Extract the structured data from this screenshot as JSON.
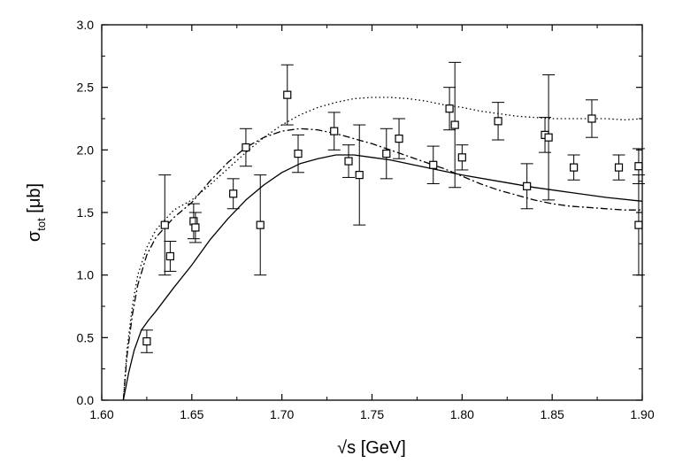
{
  "chart_data": {
    "type": "scatter",
    "xlabel": "√s [GeV]",
    "ylabel": {
      "base": "σ",
      "sub": "tot",
      "unit": " [μb]"
    },
    "xlim": [
      1.6,
      1.9
    ],
    "ylim": [
      0.0,
      3.0
    ],
    "x_ticks": [
      "1.60",
      "1.65",
      "1.70",
      "1.75",
      "1.80",
      "1.85",
      "1.90"
    ],
    "y_ticks": [
      "0.0",
      "0.5",
      "1.0",
      "1.5",
      "2.0",
      "2.5",
      "3.0"
    ],
    "grid": false,
    "legend": "none",
    "points": [
      {
        "x": 1.625,
        "y": 0.47,
        "err": 0.09
      },
      {
        "x": 1.635,
        "y": 1.4,
        "err": 0.4
      },
      {
        "x": 1.638,
        "y": 1.15,
        "err": 0.12
      },
      {
        "x": 1.651,
        "y": 1.43,
        "err": 0.14
      },
      {
        "x": 1.652,
        "y": 1.38,
        "err": 0.12
      },
      {
        "x": 1.673,
        "y": 1.65,
        "err": 0.12
      },
      {
        "x": 1.68,
        "y": 2.02,
        "err": 0.15
      },
      {
        "x": 1.688,
        "y": 1.4,
        "err": 0.4
      },
      {
        "x": 1.703,
        "y": 2.44,
        "err": 0.24
      },
      {
        "x": 1.709,
        "y": 1.97,
        "err": 0.15
      },
      {
        "x": 1.729,
        "y": 2.15,
        "err": 0.15
      },
      {
        "x": 1.737,
        "y": 1.91,
        "err": 0.13
      },
      {
        "x": 1.743,
        "y": 1.8,
        "err": 0.4
      },
      {
        "x": 1.758,
        "y": 1.97,
        "err": 0.2
      },
      {
        "x": 1.765,
        "y": 2.09,
        "err": 0.16
      },
      {
        "x": 1.784,
        "y": 1.88,
        "err": 0.15
      },
      {
        "x": 1.793,
        "y": 2.33,
        "err": 0.17
      },
      {
        "x": 1.796,
        "y": 2.2,
        "err": 0.5
      },
      {
        "x": 1.8,
        "y": 1.94,
        "err": 0.1
      },
      {
        "x": 1.82,
        "y": 2.23,
        "err": 0.15
      },
      {
        "x": 1.836,
        "y": 1.71,
        "err": 0.18
      },
      {
        "x": 1.846,
        "y": 2.12,
        "err": 0.14
      },
      {
        "x": 1.848,
        "y": 2.1,
        "err": 0.5
      },
      {
        "x": 1.862,
        "y": 1.86,
        "err": 0.1
      },
      {
        "x": 1.872,
        "y": 2.25,
        "err": 0.15
      },
      {
        "x": 1.887,
        "y": 1.86,
        "err": 0.1
      },
      {
        "x": 1.898,
        "y": 1.87,
        "err": 0.14
      },
      {
        "x": 1.898,
        "y": 1.4,
        "err": 0.4
      }
    ],
    "curves": [
      {
        "style": "solid",
        "x": [
          1.612,
          1.615,
          1.618,
          1.622,
          1.626,
          1.63,
          1.64,
          1.65,
          1.66,
          1.67,
          1.68,
          1.69,
          1.7,
          1.71,
          1.72,
          1.73,
          1.74,
          1.75,
          1.76,
          1.77,
          1.78,
          1.79,
          1.8,
          1.82,
          1.84,
          1.86,
          1.88,
          1.9
        ],
        "y": [
          0.0,
          0.22,
          0.4,
          0.56,
          0.64,
          0.71,
          0.9,
          1.08,
          1.28,
          1.45,
          1.6,
          1.72,
          1.82,
          1.89,
          1.93,
          1.96,
          1.96,
          1.94,
          1.92,
          1.89,
          1.86,
          1.83,
          1.8,
          1.75,
          1.7,
          1.66,
          1.62,
          1.59
        ]
      },
      {
        "style": "dotted",
        "x": [
          1.612,
          1.614,
          1.617,
          1.62,
          1.625,
          1.63,
          1.64,
          1.65,
          1.66,
          1.67,
          1.68,
          1.69,
          1.7,
          1.71,
          1.72,
          1.73,
          1.74,
          1.75,
          1.76,
          1.77,
          1.78,
          1.79,
          1.8,
          1.81,
          1.82,
          1.83,
          1.84,
          1.85,
          1.86,
          1.87,
          1.88,
          1.89,
          1.9
        ],
        "y": [
          0.0,
          0.4,
          0.75,
          1.0,
          1.22,
          1.36,
          1.52,
          1.6,
          1.72,
          1.85,
          1.98,
          2.1,
          2.2,
          2.28,
          2.34,
          2.38,
          2.41,
          2.42,
          2.42,
          2.41,
          2.39,
          2.36,
          2.34,
          2.31,
          2.29,
          2.27,
          2.26,
          2.25,
          2.25,
          2.25,
          2.25,
          2.24,
          2.25
        ]
      },
      {
        "style": "dash-dot",
        "x": [
          1.612,
          1.614,
          1.617,
          1.62,
          1.625,
          1.63,
          1.64,
          1.65,
          1.66,
          1.67,
          1.68,
          1.69,
          1.7,
          1.71,
          1.72,
          1.73,
          1.74,
          1.75,
          1.76,
          1.77,
          1.78,
          1.79,
          1.8,
          1.81,
          1.82,
          1.83,
          1.84,
          1.85,
          1.86,
          1.87,
          1.88,
          1.89,
          1.9
        ],
        "y": [
          0.0,
          0.35,
          0.68,
          0.92,
          1.16,
          1.3,
          1.46,
          1.58,
          1.75,
          1.9,
          2.02,
          2.1,
          2.15,
          2.17,
          2.16,
          2.13,
          2.09,
          2.05,
          2.0,
          1.95,
          1.9,
          1.85,
          1.79,
          1.73,
          1.68,
          1.64,
          1.6,
          1.57,
          1.55,
          1.54,
          1.53,
          1.52,
          1.52
        ]
      }
    ]
  }
}
